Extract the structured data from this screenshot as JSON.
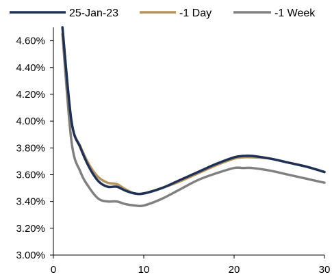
{
  "chart_data": {
    "type": "line",
    "title": "",
    "xlabel": "",
    "ylabel": "",
    "xlim": [
      0,
      30
    ],
    "ylim": [
      3.0,
      4.7
    ],
    "x_ticks": [
      0,
      10,
      20,
      30
    ],
    "x_tick_labels": [
      "0",
      "10",
      "20",
      "30"
    ],
    "y_ticks": [
      3.0,
      3.2,
      3.4,
      3.6,
      3.8,
      4.0,
      4.2,
      4.4,
      4.6
    ],
    "y_tick_labels": [
      "3.00%",
      "3.20%",
      "3.40%",
      "3.60%",
      "3.80%",
      "4.00%",
      "4.20%",
      "4.40%",
      "4.60%"
    ],
    "grid": false,
    "legend_position": "top",
    "series": [
      {
        "name": "25-Jan-23",
        "color": "#1f3057",
        "x": [
          1,
          2,
          3,
          4,
          5,
          6,
          7,
          8,
          9,
          10,
          12,
          14,
          16,
          18,
          20,
          21,
          22,
          24,
          26,
          28,
          30
        ],
        "y": [
          4.7,
          4.0,
          3.8,
          3.65,
          3.55,
          3.51,
          3.51,
          3.48,
          3.46,
          3.46,
          3.5,
          3.56,
          3.62,
          3.68,
          3.73,
          3.74,
          3.74,
          3.72,
          3.69,
          3.66,
          3.62
        ]
      },
      {
        "name": "-1 Day",
        "color": "#b5935a",
        "x": [
          1,
          2,
          3,
          4,
          5,
          6,
          7,
          8,
          9,
          10,
          12,
          14,
          16,
          18,
          20,
          21,
          22,
          24,
          26,
          28,
          30
        ],
        "y": [
          4.7,
          4.0,
          3.81,
          3.67,
          3.58,
          3.54,
          3.53,
          3.49,
          3.46,
          3.46,
          3.5,
          3.55,
          3.61,
          3.67,
          3.72,
          3.73,
          3.73,
          3.72,
          3.69,
          3.66,
          3.62
        ]
      },
      {
        "name": "-1 Week",
        "color": "#808080",
        "x": [
          1,
          2,
          3,
          4,
          5,
          6,
          7,
          8,
          9,
          10,
          12,
          14,
          16,
          18,
          20,
          21,
          22,
          24,
          26,
          28,
          30
        ],
        "y": [
          4.65,
          3.85,
          3.62,
          3.5,
          3.42,
          3.4,
          3.4,
          3.38,
          3.37,
          3.37,
          3.42,
          3.49,
          3.56,
          3.61,
          3.65,
          3.65,
          3.65,
          3.63,
          3.6,
          3.57,
          3.54
        ]
      }
    ]
  }
}
